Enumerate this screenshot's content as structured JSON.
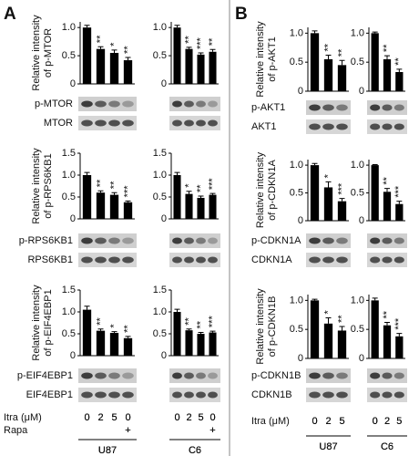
{
  "chart_data": [
    {
      "type": "bar",
      "ylabel": [
        "Relative intensity",
        "of p-MTOR"
      ],
      "values": [
        1.0,
        0.62,
        0.55,
        0.42
      ],
      "errors": [
        0.04,
        0.04,
        0.05,
        0.05
      ],
      "annotations": [
        null,
        "**",
        "*",
        "**"
      ],
      "ylim": [
        0,
        1.1
      ],
      "yticks": [
        0,
        0.5,
        {
          "value": 1,
          "label": "1.0"
        }
      ],
      "color": "#000000"
    },
    {
      "type": "bar",
      "values": [
        1.0,
        0.62,
        0.52,
        0.57
      ],
      "errors": [
        0.04,
        0.03,
        0.03,
        0.04
      ],
      "annotations": [
        null,
        "**",
        "***",
        "**"
      ],
      "ylim": [
        0,
        1.1
      ],
      "yticks": [
        0,
        0.5,
        {
          "value": 1,
          "label": "1.0"
        }
      ],
      "color": "#000000"
    },
    {
      "type": "bar",
      "ylabel": [
        "Relative intensity",
        "of p-RPS6KB1"
      ],
      "values": [
        1.0,
        0.6,
        0.55,
        0.38
      ],
      "errors": [
        0.06,
        0.04,
        0.05,
        0.03
      ],
      "annotations": [
        null,
        "**",
        "**",
        "***"
      ],
      "ylim": [
        0,
        1.5
      ],
      "yticks": [
        0,
        0.5,
        {
          "value": 1,
          "label": "1.0"
        },
        1.5
      ],
      "color": "#000000"
    },
    {
      "type": "bar",
      "values": [
        1.0,
        0.57,
        0.48,
        0.55
      ],
      "errors": [
        0.06,
        0.06,
        0.04,
        0.03
      ],
      "annotations": [
        null,
        "*",
        "**",
        "***"
      ],
      "ylim": [
        0,
        1.5
      ],
      "yticks": [
        0,
        0.5,
        {
          "value": 1,
          "label": "1.0"
        },
        1.5
      ],
      "color": "#000000"
    },
    {
      "type": "bar",
      "ylabel": [
        "Relative intensity",
        "of p-EIF4EBP1"
      ],
      "values": [
        1.05,
        0.57,
        0.52,
        0.4
      ],
      "errors": [
        0.08,
        0.04,
        0.03,
        0.04
      ],
      "annotations": [
        null,
        "**",
        "*",
        "**"
      ],
      "ylim": [
        0,
        1.5
      ],
      "yticks": [
        0,
        0.5,
        {
          "value": 1,
          "label": "1.0"
        },
        1.5
      ],
      "color": "#000000"
    },
    {
      "type": "bar",
      "values": [
        1.0,
        0.58,
        0.5,
        0.53
      ],
      "errors": [
        0.06,
        0.03,
        0.03,
        0.03
      ],
      "annotations": [
        null,
        "**",
        "**",
        "***"
      ],
      "ylim": [
        0,
        1.5
      ],
      "yticks": [
        0,
        0.5,
        {
          "value": 1,
          "label": "1.0"
        },
        1.5
      ],
      "color": "#000000"
    },
    {
      "type": "bar",
      "ylabel": [
        "Relative intensity",
        "of p-AKT1"
      ],
      "values": [
        1.0,
        0.55,
        0.45
      ],
      "errors": [
        0.04,
        0.07,
        0.08
      ],
      "annotations": [
        null,
        "**",
        "**"
      ],
      "ylim": [
        0,
        1.1
      ],
      "yticks": [
        0,
        0.5,
        {
          "value": 1,
          "label": "1.0"
        }
      ],
      "color": "#000000"
    },
    {
      "type": "bar",
      "values": [
        1.0,
        0.55,
        0.33
      ],
      "errors": [
        0.02,
        0.06,
        0.05
      ],
      "annotations": [
        null,
        "**",
        "**"
      ],
      "ylim": [
        0,
        1.1
      ],
      "yticks": [
        0,
        0.5,
        {
          "value": 1,
          "label": "1.0"
        }
      ],
      "color": "#000000"
    },
    {
      "type": "bar",
      "ylabel": [
        "Relative intensity",
        "of p-CDKN1A"
      ],
      "values": [
        1.0,
        0.6,
        0.35
      ],
      "errors": [
        0.03,
        0.1,
        0.05
      ],
      "annotations": [
        null,
        "*",
        "***"
      ],
      "ylim": [
        0,
        1.1
      ],
      "yticks": [
        0,
        0.5,
        {
          "value": 1,
          "label": "1.0"
        }
      ],
      "color": "#000000"
    },
    {
      "type": "bar",
      "values": [
        1.0,
        0.52,
        0.3
      ],
      "errors": [
        0.01,
        0.06,
        0.05
      ],
      "annotations": [
        null,
        "**",
        "***"
      ],
      "ylim": [
        0,
        1.1
      ],
      "yticks": [
        0,
        0.5,
        {
          "value": 1,
          "label": "1.0"
        }
      ],
      "color": "#000000"
    },
    {
      "type": "bar",
      "ylabel": [
        "Relative intensity",
        "of p-CDKN1B"
      ],
      "values": [
        1.0,
        0.6,
        0.48
      ],
      "errors": [
        0.02,
        0.1,
        0.07
      ],
      "annotations": [
        null,
        "*",
        "**"
      ],
      "ylim": [
        0,
        1.1
      ],
      "yticks": [
        0,
        0.5,
        {
          "value": 1,
          "label": "1.0"
        }
      ],
      "color": "#000000"
    },
    {
      "type": "bar",
      "values": [
        1.0,
        0.57,
        0.38
      ],
      "errors": [
        0.04,
        0.05,
        0.05
      ],
      "annotations": [
        null,
        "**",
        "***"
      ],
      "ylim": [
        0,
        1.1
      ],
      "yticks": [
        0,
        0.5,
        {
          "value": 1,
          "label": "1.0"
        }
      ],
      "color": "#000000"
    }
  ],
  "panels": [
    {
      "label": "A",
      "blots": [
        [
          "p-MTOR",
          "MTOR"
        ],
        [
          "p-RPS6KB1",
          "RPS6KB1"
        ],
        [
          "p-EIF4EBP1",
          "EIF4EBP1"
        ]
      ],
      "dose_label": "Itra (μM)",
      "doses": [
        "0",
        "2",
        "5",
        "0"
      ],
      "rapa_label": "Rapa",
      "rapa": [
        null,
        null,
        null,
        "+"
      ],
      "cell_lines": [
        "U87",
        "C6"
      ]
    },
    {
      "label": "B",
      "blots": [
        [
          "p-AKT1",
          "AKT1"
        ],
        [
          "p-CDKN1A",
          "CDKN1A"
        ],
        [
          "p-CDKN1B",
          "CDKN1B"
        ]
      ],
      "dose_label": "Itra (μM)",
      "doses": [
        "0",
        "2",
        "5"
      ],
      "cell_lines": [
        "U87",
        "C6"
      ]
    }
  ]
}
